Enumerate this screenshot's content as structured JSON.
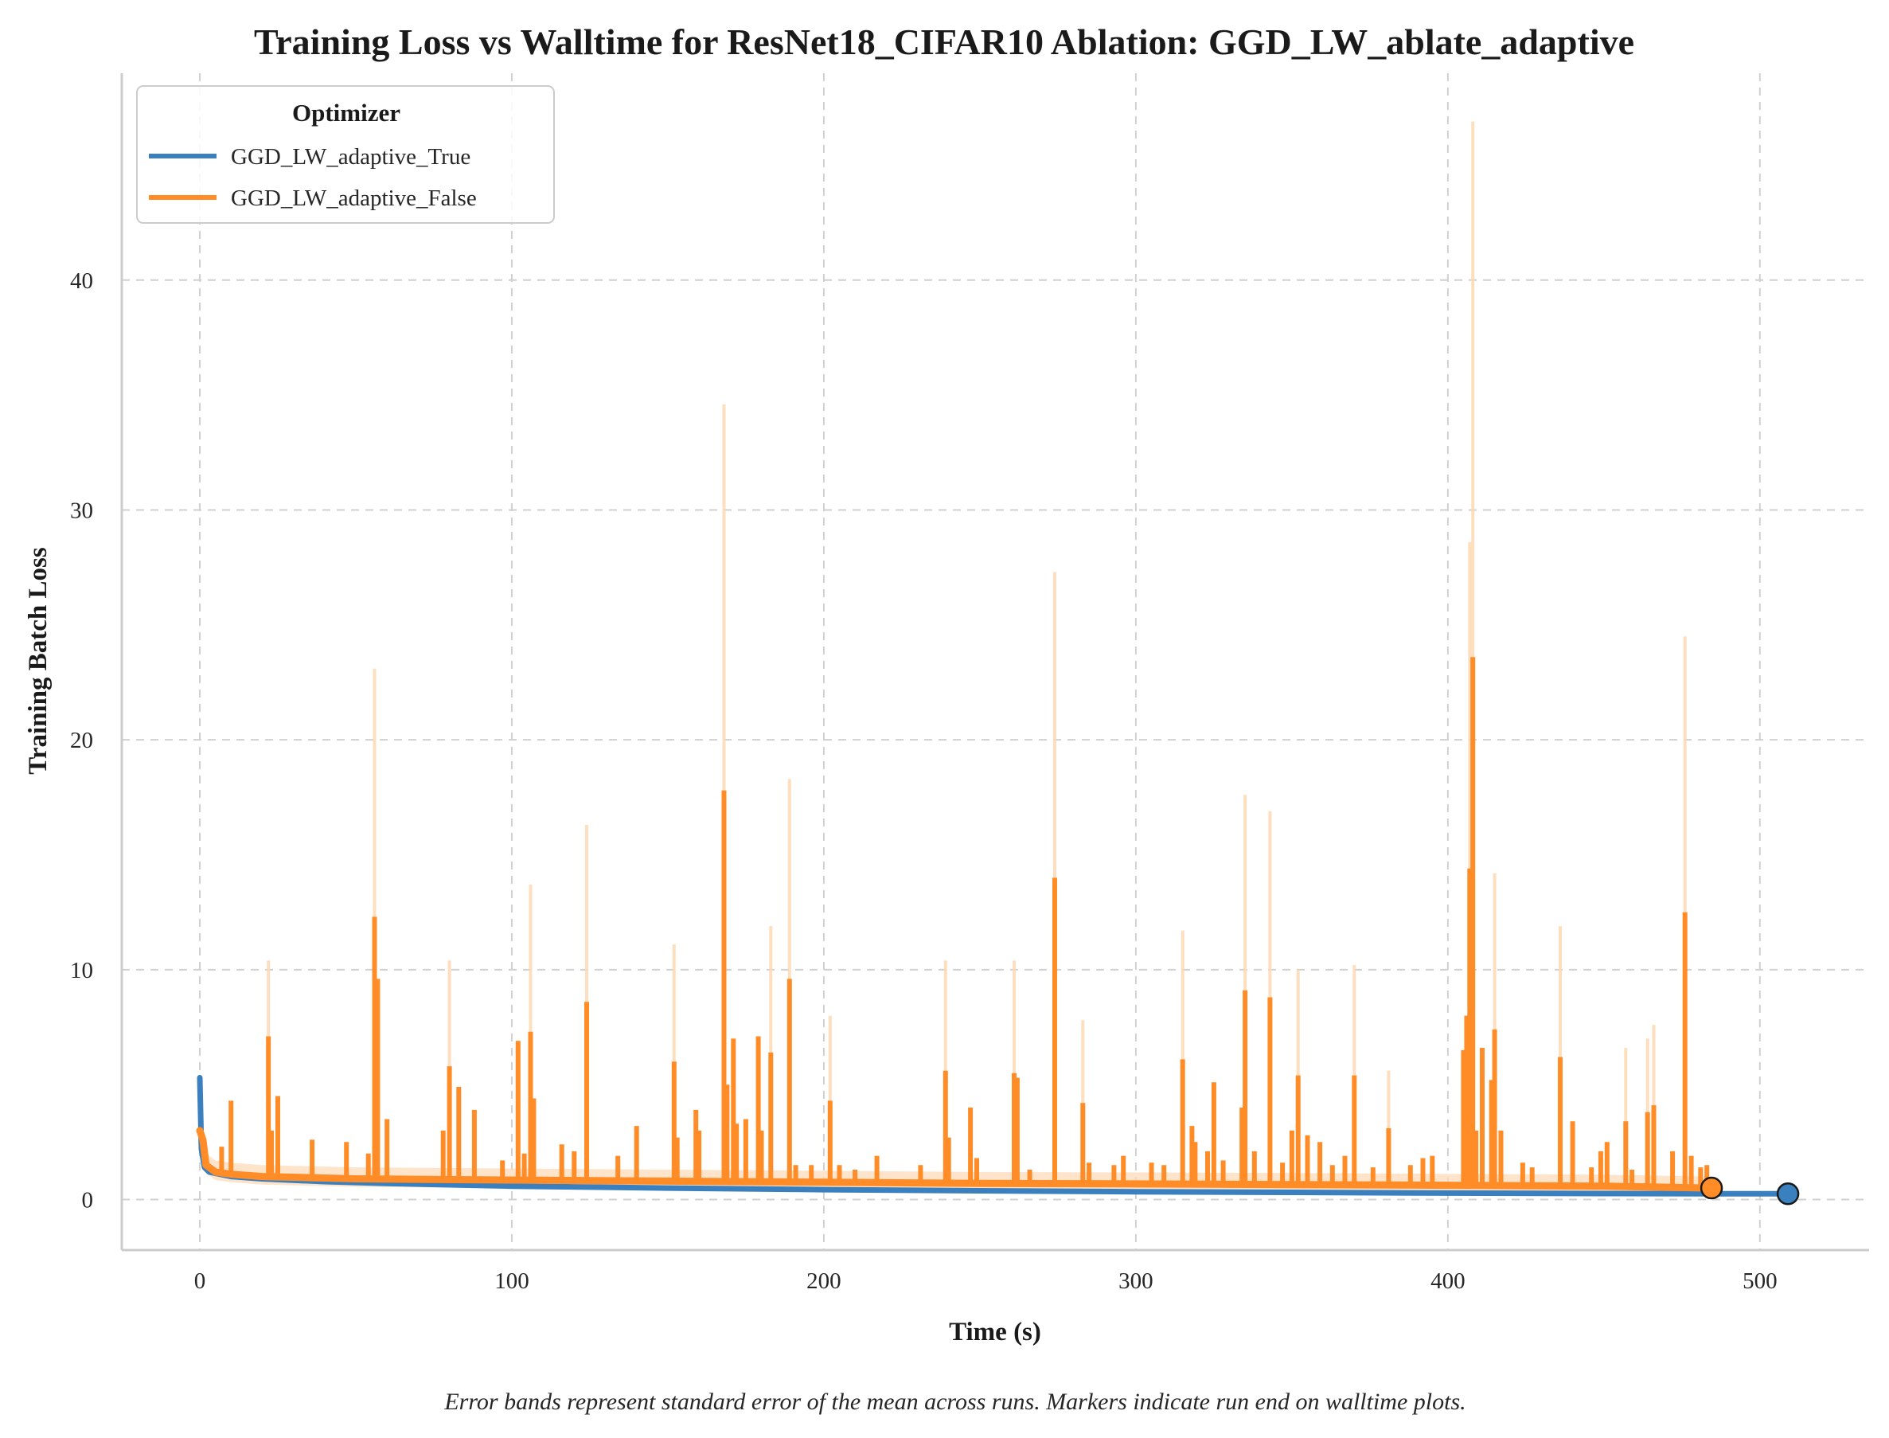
{
  "chart_data": {
    "type": "line",
    "title": "Training Loss vs Walltime for ResNet18_CIFAR10 Ablation: GGD_LW_ablate_adaptive",
    "xlabel": "Time (s)",
    "ylabel": "Training Batch Loss",
    "xlim": [
      -25,
      535
    ],
    "ylim": [
      -2.2,
      49
    ],
    "x_ticks": [
      0,
      100,
      200,
      300,
      400,
      500
    ],
    "y_ticks": [
      0,
      10,
      20,
      30,
      40
    ],
    "grid": true,
    "legend": {
      "title": "Optimizer",
      "placement": "top-left"
    },
    "caption": "Error bands represent standard error of the mean across runs. Markers indicate run end on walltime plots.",
    "series": [
      {
        "name": "GGD_LW_adaptive_True",
        "color": "#3a7fbe",
        "end_marker": {
          "x": 509,
          "y": 0.25
        },
        "baseline": [
          [
            0,
            5.3
          ],
          [
            0.5,
            2.2
          ],
          [
            1.5,
            1.4
          ],
          [
            3,
            1.2
          ],
          [
            10,
            1.0
          ],
          [
            20,
            0.9
          ],
          [
            40,
            0.78
          ],
          [
            60,
            0.7
          ],
          [
            80,
            0.64
          ],
          [
            100,
            0.58
          ],
          [
            150,
            0.5
          ],
          [
            200,
            0.43
          ],
          [
            250,
            0.38
          ],
          [
            300,
            0.34
          ],
          [
            350,
            0.31
          ],
          [
            400,
            0.28
          ],
          [
            450,
            0.26
          ],
          [
            485,
            0.25
          ],
          [
            509,
            0.25
          ]
        ],
        "spikes": []
      },
      {
        "name": "GGD_LW_adaptive_False",
        "color": "#ff8c26",
        "band_color": "#fdd9b5",
        "end_marker": {
          "x": 484.5,
          "y": 0.5
        },
        "baseline": [
          [
            0,
            3.0
          ],
          [
            1,
            2.6
          ],
          [
            2,
            1.5
          ],
          [
            5,
            1.2
          ],
          [
            10,
            1.1
          ],
          [
            20,
            1.0
          ],
          [
            50,
            0.9
          ],
          [
            100,
            0.85
          ],
          [
            150,
            0.8
          ],
          [
            200,
            0.75
          ],
          [
            250,
            0.7
          ],
          [
            300,
            0.68
          ],
          [
            350,
            0.65
          ],
          [
            400,
            0.62
          ],
          [
            450,
            0.58
          ],
          [
            484.5,
            0.5
          ]
        ],
        "spikes": [
          [
            0.5,
            3.0
          ],
          [
            7,
            2.3
          ],
          [
            10,
            4.3
          ],
          [
            22,
            7.1
          ],
          [
            23,
            3.0
          ],
          [
            25,
            4.5
          ],
          [
            36,
            2.6
          ],
          [
            47,
            2.5
          ],
          [
            54,
            2.0
          ],
          [
            56,
            12.3
          ],
          [
            57,
            9.6
          ],
          [
            60,
            3.5
          ],
          [
            78,
            3.0
          ],
          [
            80,
            5.8
          ],
          [
            83,
            4.9
          ],
          [
            88,
            3.9
          ],
          [
            97,
            1.7
          ],
          [
            102,
            6.9
          ],
          [
            104,
            2.0
          ],
          [
            106,
            7.3
          ],
          [
            107,
            4.4
          ],
          [
            116,
            2.4
          ],
          [
            120,
            2.1
          ],
          [
            124,
            8.6
          ],
          [
            134,
            1.9
          ],
          [
            140,
            3.2
          ],
          [
            152,
            6.0
          ],
          [
            153,
            2.7
          ],
          [
            159,
            3.9
          ],
          [
            160,
            3.0
          ],
          [
            168,
            17.8
          ],
          [
            169,
            5.0
          ],
          [
            171,
            7.0
          ],
          [
            172,
            3.3
          ],
          [
            175,
            3.5
          ],
          [
            179,
            7.1
          ],
          [
            180,
            3.0
          ],
          [
            183,
            6.4
          ],
          [
            189,
            9.6
          ],
          [
            191,
            1.5
          ],
          [
            196,
            1.5
          ],
          [
            202,
            4.3
          ],
          [
            205,
            1.5
          ],
          [
            210,
            1.3
          ],
          [
            217,
            1.9
          ],
          [
            231,
            1.5
          ],
          [
            239,
            5.6
          ],
          [
            240,
            2.7
          ],
          [
            247,
            4.0
          ],
          [
            249,
            1.8
          ],
          [
            261,
            5.5
          ],
          [
            262,
            5.3
          ],
          [
            266,
            1.3
          ],
          [
            274,
            14.0
          ],
          [
            283,
            4.2
          ],
          [
            285,
            1.6
          ],
          [
            293,
            1.5
          ],
          [
            296,
            1.9
          ],
          [
            305,
            1.6
          ],
          [
            309,
            1.5
          ],
          [
            315,
            6.1
          ],
          [
            318,
            3.2
          ],
          [
            319,
            2.5
          ],
          [
            323,
            2.1
          ],
          [
            325,
            5.1
          ],
          [
            328,
            1.7
          ],
          [
            334,
            4.0
          ],
          [
            335,
            9.1
          ],
          [
            338,
            2.1
          ],
          [
            343,
            8.8
          ],
          [
            347,
            1.6
          ],
          [
            350,
            3.0
          ],
          [
            352,
            5.4
          ],
          [
            355,
            2.8
          ],
          [
            359,
            2.5
          ],
          [
            363,
            1.5
          ],
          [
            367,
            1.9
          ],
          [
            370,
            5.4
          ],
          [
            376,
            1.4
          ],
          [
            381,
            3.1
          ],
          [
            388,
            1.5
          ],
          [
            392,
            1.8
          ],
          [
            395,
            1.9
          ],
          [
            405,
            6.5
          ],
          [
            406,
            8.0
          ],
          [
            407,
            14.4
          ],
          [
            408,
            23.6
          ],
          [
            409,
            3.0
          ],
          [
            411,
            6.6
          ],
          [
            414,
            5.2
          ],
          [
            415,
            7.4
          ],
          [
            417,
            3.0
          ],
          [
            424,
            1.6
          ],
          [
            427,
            1.4
          ],
          [
            436,
            6.2
          ],
          [
            440,
            3.4
          ],
          [
            446,
            1.4
          ],
          [
            449,
            2.1
          ],
          [
            451,
            2.5
          ],
          [
            457,
            3.4
          ],
          [
            459,
            1.3
          ],
          [
            464,
            3.8
          ],
          [
            466,
            4.1
          ],
          [
            472,
            2.1
          ],
          [
            476,
            12.5
          ],
          [
            478,
            1.9
          ],
          [
            481,
            1.4
          ],
          [
            483,
            1.5
          ]
        ],
        "band_spikes": [
          [
            22,
            10.4
          ],
          [
            56,
            23.1
          ],
          [
            80,
            10.4
          ],
          [
            106,
            13.7
          ],
          [
            124,
            16.3
          ],
          [
            152,
            11.1
          ],
          [
            168,
            34.6
          ],
          [
            183,
            11.9
          ],
          [
            189,
            18.3
          ],
          [
            202,
            8.0
          ],
          [
            239,
            10.4
          ],
          [
            261,
            10.4
          ],
          [
            274,
            27.3
          ],
          [
            283,
            7.8
          ],
          [
            315,
            11.7
          ],
          [
            335,
            17.6
          ],
          [
            343,
            16.9
          ],
          [
            352,
            10.0
          ],
          [
            370,
            10.2
          ],
          [
            381,
            5.6
          ],
          [
            408,
            46.9
          ],
          [
            407,
            28.6
          ],
          [
            415,
            14.2
          ],
          [
            436,
            11.9
          ],
          [
            457,
            6.6
          ],
          [
            464,
            7.0
          ],
          [
            466,
            7.6
          ],
          [
            476,
            24.5
          ]
        ]
      }
    ]
  }
}
